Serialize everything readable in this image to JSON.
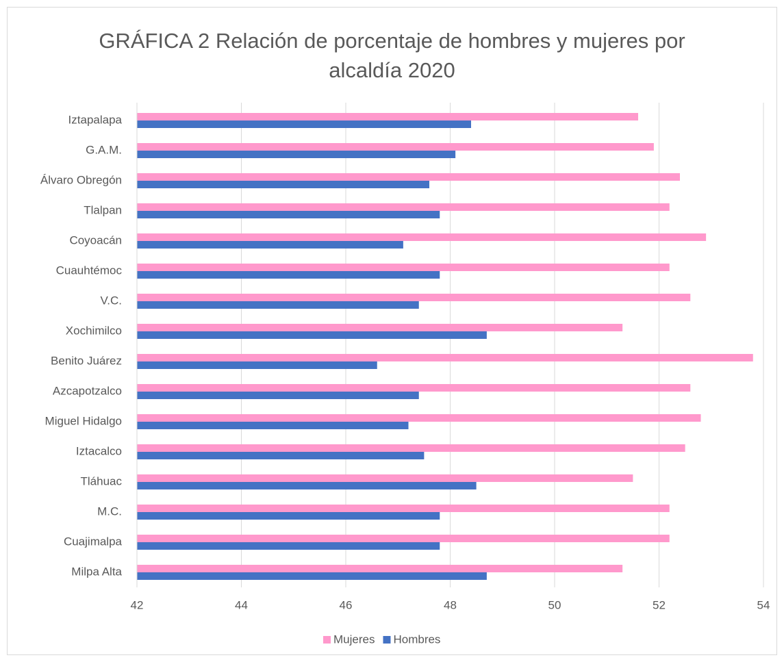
{
  "chart_data": {
    "type": "barh",
    "title": "GRÁFICA 2 Relación de porcentaje de hombres y mujeres por alcaldía 2020",
    "categories": [
      "Iztapalapa",
      "G.A.M.",
      "Álvaro Obregón",
      "Tlalpan",
      "Coyoacán",
      "Cuauhtémoc",
      "V.C.",
      "Xochimilco",
      "Benito Juárez",
      "Azcapotzalco",
      "Miguel Hidalgo",
      "Iztacalco",
      "Tláhuac",
      "M.C.",
      "Cuajimalpa",
      "Milpa Alta"
    ],
    "series": [
      {
        "name": "Mujeres",
        "color": "#ff99cc",
        "values": [
          51.6,
          51.9,
          52.4,
          52.2,
          52.9,
          52.2,
          52.6,
          51.3,
          53.8,
          52.6,
          52.8,
          52.5,
          51.5,
          52.2,
          52.2,
          51.3
        ]
      },
      {
        "name": "Hombres",
        "color": "#4472c4",
        "values": [
          48.4,
          48.1,
          47.6,
          47.8,
          47.1,
          47.8,
          47.4,
          48.7,
          46.6,
          47.4,
          47.2,
          47.5,
          48.5,
          47.8,
          47.8,
          48.7
        ]
      }
    ],
    "xlim": [
      42,
      54
    ],
    "xticks": [
      42,
      44,
      46,
      48,
      50,
      52,
      54
    ],
    "grid": true,
    "legend": "bottom"
  }
}
